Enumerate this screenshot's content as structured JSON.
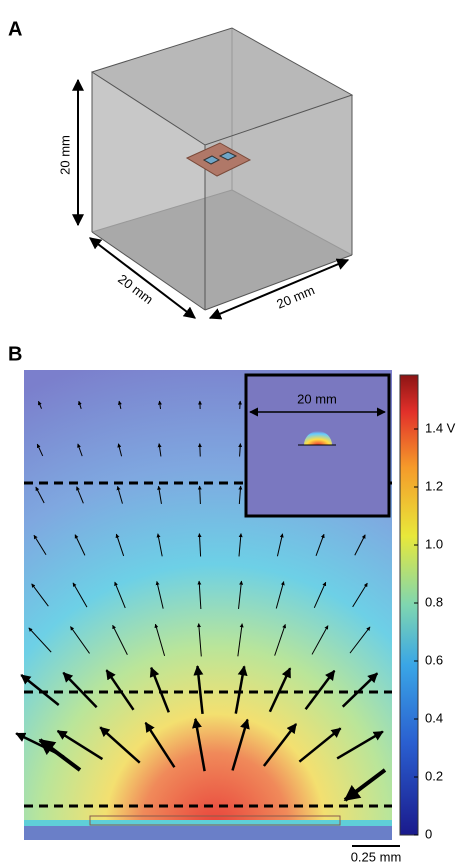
{
  "panel_a": {
    "label": "A",
    "dimensions": [
      "20 mm",
      "20 mm",
      "20 mm"
    ]
  },
  "panel_b": {
    "label": "B",
    "inset_dimension": "20 mm",
    "colorbar_ticks": [
      "0",
      "0.2",
      "0.4",
      "0.6",
      "0.8",
      "1.0",
      "1.2",
      "1.4 V"
    ],
    "scale_bar": "0.25 mm"
  }
}
